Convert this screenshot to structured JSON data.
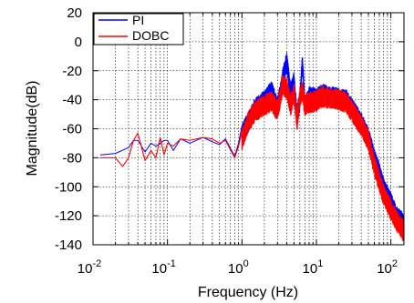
{
  "chart_data": {
    "type": "line",
    "xlabel": "Frequency (Hz)",
    "ylabel": "Magnitude(dB)",
    "x_scale": "log",
    "xlim": [
      0.01,
      150
    ],
    "ylim": [
      -140,
      20
    ],
    "x_ticks": [
      {
        "base": "10",
        "exp": "-2"
      },
      {
        "base": "10",
        "exp": "-1"
      },
      {
        "base": "10",
        "exp": "0"
      },
      {
        "base": "10",
        "exp": "1"
      },
      {
        "base": "10",
        "exp": "2"
      }
    ],
    "y_ticks": [
      "20",
      "0",
      "-20",
      "-40",
      "-60",
      "-80",
      "-100",
      "-120",
      "-140"
    ],
    "grid": true,
    "legend_position": "top-left",
    "series": [
      {
        "name": "PI",
        "color": "#0000ff",
        "noise": 12,
        "x": [
          0.0125,
          0.02,
          0.03,
          0.035,
          0.04,
          0.05,
          0.06,
          0.07,
          0.08,
          0.09,
          0.1,
          0.12,
          0.15,
          0.2,
          0.3,
          0.4,
          0.5,
          0.6,
          0.8,
          0.9,
          1.0,
          1.2,
          1.5,
          2.0,
          2.5,
          3.0,
          3.5,
          4.0,
          4.5,
          5.0,
          5.5,
          6.0,
          6.5,
          7.0,
          8.0,
          10,
          12,
          15,
          20,
          25,
          30,
          40,
          50,
          60,
          70,
          80,
          100,
          120,
          140,
          150
        ],
        "y": [
          -78,
          -77,
          -73,
          -68,
          -68,
          -76,
          -70,
          -72,
          -70,
          -68,
          -68,
          -75,
          -67,
          -70,
          -66,
          -69,
          -71,
          -67,
          -79,
          -70,
          -58,
          -50,
          -40,
          -35,
          -28,
          -40,
          -20,
          -8,
          -30,
          -22,
          -45,
          -35,
          -8,
          -38,
          -32,
          -33,
          -30,
          -32,
          -33,
          -34,
          -40,
          -50,
          -60,
          -75,
          -85,
          -95,
          -105,
          -115,
          -118,
          -120
        ]
      },
      {
        "name": "DOBC",
        "color": "#ff0000",
        "noise": 12,
        "x": [
          0.0125,
          0.02,
          0.025,
          0.03,
          0.035,
          0.04,
          0.05,
          0.06,
          0.07,
          0.08,
          0.09,
          0.1,
          0.12,
          0.15,
          0.2,
          0.3,
          0.4,
          0.5,
          0.6,
          0.8,
          0.9,
          1.0,
          1.2,
          1.5,
          2.0,
          2.5,
          3.0,
          3.5,
          4.0,
          4.5,
          5.0,
          5.5,
          6.0,
          6.5,
          7.0,
          8.0,
          10,
          12,
          15,
          20,
          25,
          30,
          40,
          50,
          60,
          70,
          80,
          100,
          120,
          140,
          150
        ],
        "y": [
          -80,
          -80,
          -86,
          -80,
          -68,
          -63,
          -82,
          -75,
          -80,
          -66,
          -78,
          -70,
          -72,
          -67,
          -68,
          -66,
          -67,
          -70,
          -68,
          -80,
          -72,
          -62,
          -50,
          -42,
          -38,
          -35,
          -42,
          -24,
          -26,
          -38,
          -30,
          -48,
          -32,
          -28,
          -38,
          -36,
          -35,
          -32,
          -33,
          -34,
          -36,
          -42,
          -52,
          -62,
          -80,
          -90,
          -100,
          -110,
          -118,
          -122,
          -126
        ]
      }
    ]
  }
}
